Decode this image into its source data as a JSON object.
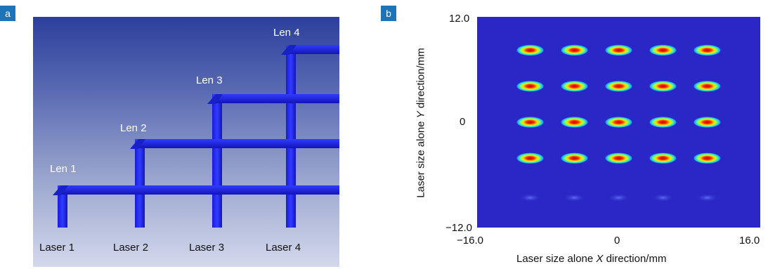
{
  "panel_a": {
    "tag": "a",
    "lens_labels": [
      "Len 1",
      "Len 2",
      "Len 3",
      "Len 4"
    ],
    "laser_labels": [
      "Laser 1",
      "Laser 2",
      "Laser 3",
      "Laser 4"
    ]
  },
  "panel_b": {
    "tag": "b",
    "xlabel_pre": "Laser size alone ",
    "xlabel_var": "X",
    "xlabel_post": " direction/mm",
    "ylabel_pre": "Laser size alone ",
    "ylabel_var": "Y",
    "ylabel_post": " direction/mm",
    "x_ticks": [
      "−16.0",
      "0",
      "16.0"
    ],
    "y_ticks": [
      "12.0",
      "0",
      "−12.0"
    ]
  },
  "chart_data": {
    "type": "heatmap",
    "xlim": [
      -16,
      16
    ],
    "ylim": [
      -12,
      12
    ],
    "spot_columns_x": [
      -10,
      -5,
      0,
      5,
      10
    ],
    "spot_rows_y": [
      8.2,
      4.1,
      0,
      -4.1
    ],
    "faint_row_y": -8.6,
    "colormap": [
      "#2b26c6",
      "#1f8fff",
      "#2de0c0",
      "#b6ff3a",
      "#ffe600",
      "#ff6a00",
      "#d40000"
    ]
  }
}
